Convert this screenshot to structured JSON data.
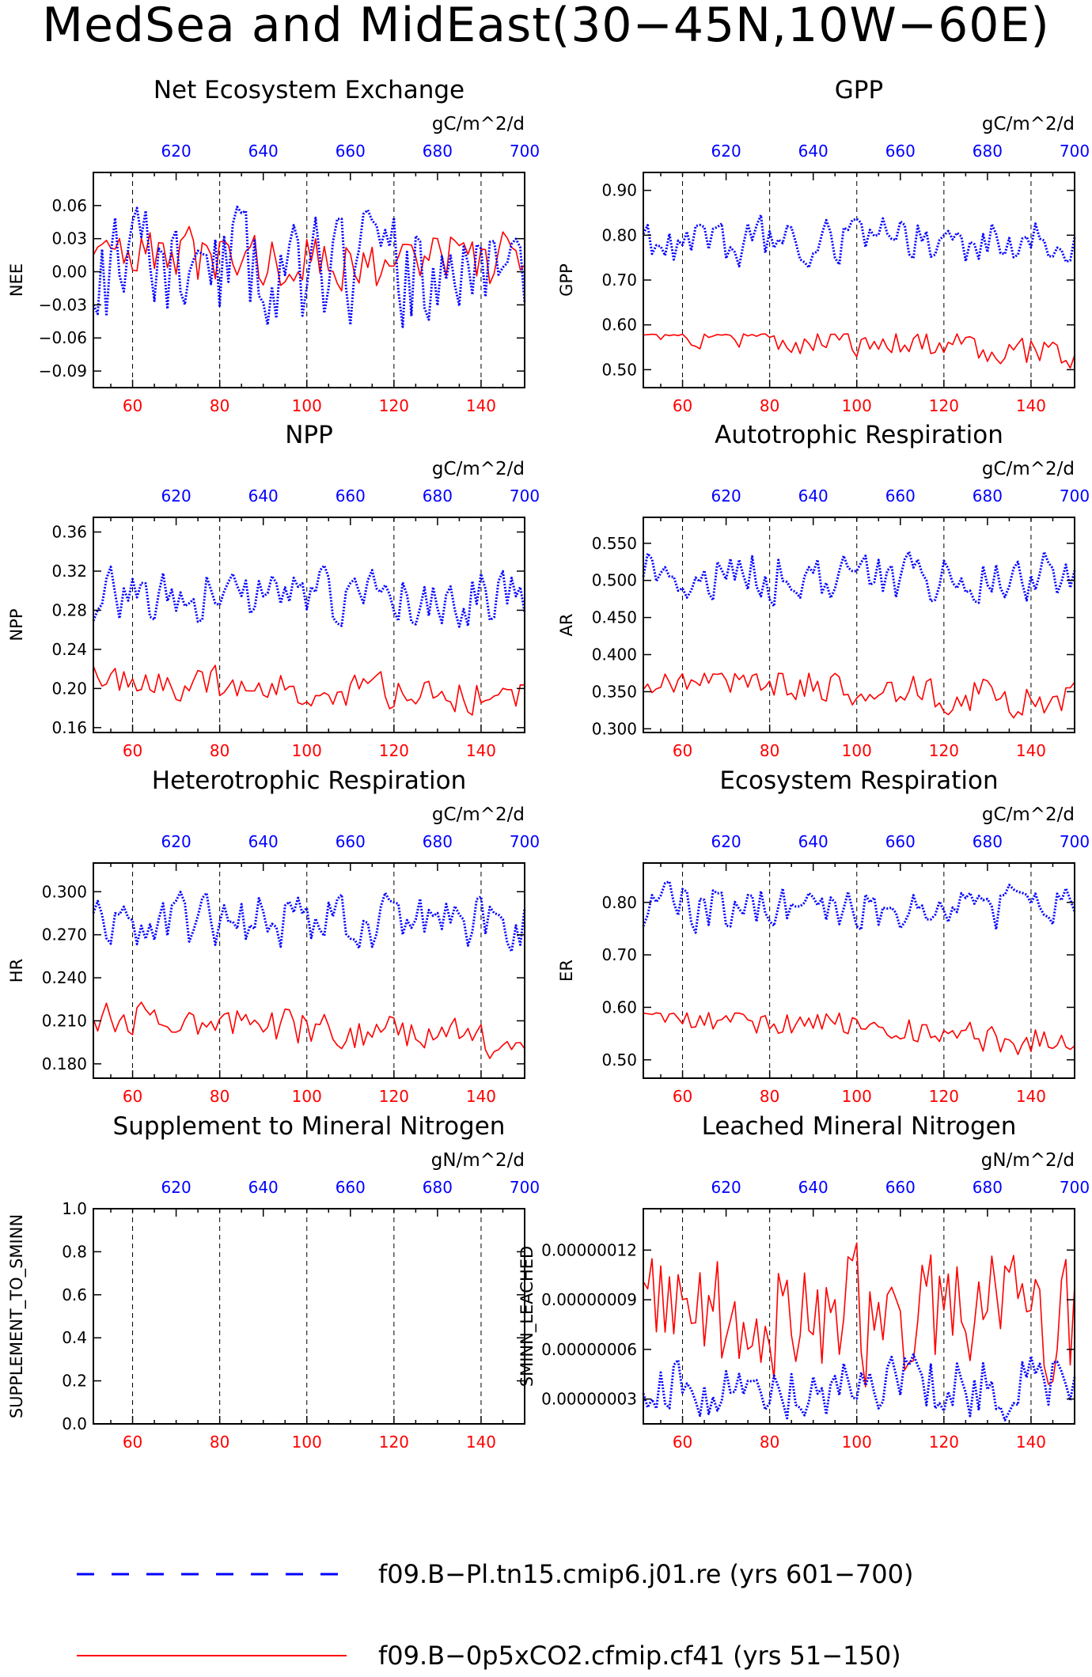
{
  "title": "MedSea and MidEast(30−45N,10W−60E)",
  "colors": {
    "red": "#ff0000",
    "blue": "#0000ff",
    "black": "#000000"
  },
  "legend": [
    {
      "label": "f09.B−Pl.tn15.cmip6.j01.re (yrs 601−700)",
      "color": "#0000ff",
      "style": "dashed"
    },
    {
      "label": "f09.B−0p5xCO2.cfmip.cf41 (yrs 51−150)",
      "color": "#ff0000",
      "style": "solid"
    }
  ],
  "chart_data": [
    {
      "type": "line",
      "title": "Net Ecosystem Exchange",
      "units": "gC/m^2/d",
      "ylabel": "NEE",
      "xlim_bottom": [
        51,
        150
      ],
      "xticks_bottom": [
        60,
        80,
        100,
        120,
        140
      ],
      "xlim_top": [
        601,
        700
      ],
      "xticks_top": [
        620,
        640,
        660,
        680,
        700
      ],
      "ylim": [
        -0.105,
        0.09
      ],
      "yticks": [
        -0.09,
        -0.06,
        -0.03,
        0.0,
        0.03,
        0.06
      ],
      "ytick_labels": [
        "−0.09",
        "−0.06",
        "−0.03",
        "0.00",
        "0.03",
        "0.06"
      ],
      "grid": "dashed vertical at x=60,80,100,120,140",
      "series": [
        {
          "color": "#ff0000",
          "style": "solid",
          "axis": "bottom",
          "base": 0.01,
          "amp": 0.017,
          "trend": 0.0,
          "min": -0.04,
          "max": 0.06,
          "seed": 3
        },
        {
          "color": "#0000ff",
          "style": "dotted",
          "axis": "top",
          "base": 0.0,
          "amp": 0.032,
          "trend": 0.0,
          "min": -0.098,
          "max": 0.075,
          "seed": 11
        }
      ]
    },
    {
      "type": "line",
      "title": "GPP",
      "units": "gC/m^2/d",
      "ylabel": "GPP",
      "xlim_bottom": [
        51,
        150
      ],
      "xticks_bottom": [
        60,
        80,
        100,
        120,
        140
      ],
      "xlim_top": [
        601,
        700
      ],
      "xticks_top": [
        620,
        640,
        660,
        680,
        700
      ],
      "ylim": [
        0.46,
        0.94
      ],
      "yticks": [
        0.5,
        0.6,
        0.7,
        0.8,
        0.9
      ],
      "ytick_labels": [
        "0.50",
        "0.60",
        "0.70",
        "0.80",
        "0.90"
      ],
      "grid": "dashed vertical at x=60,80,100,120,140",
      "series": [
        {
          "color": "#ff0000",
          "style": "solid",
          "axis": "bottom",
          "base": 0.56,
          "amp": 0.022,
          "trend": -0.06,
          "min": 0.47,
          "max": 0.58,
          "seed": 5
        },
        {
          "color": "#0000ff",
          "style": "dotted",
          "axis": "top",
          "base": 0.79,
          "amp": 0.035,
          "trend": 0.0,
          "min": 0.72,
          "max": 0.915,
          "seed": 17
        }
      ]
    },
    {
      "type": "line",
      "title": "NPP",
      "units": "gC/m^2/d",
      "ylabel": "NPP",
      "xlim_bottom": [
        51,
        150
      ],
      "xticks_bottom": [
        60,
        80,
        100,
        120,
        140
      ],
      "xlim_top": [
        601,
        700
      ],
      "xticks_top": [
        620,
        640,
        660,
        680,
        700
      ],
      "ylim": [
        0.155,
        0.375
      ],
      "yticks": [
        0.16,
        0.2,
        0.24,
        0.28,
        0.32,
        0.36
      ],
      "ytick_labels": [
        "0.16",
        "0.20",
        "0.24",
        "0.28",
        "0.32",
        "0.36"
      ],
      "grid": "dashed vertical at x=60,80,100,120,140",
      "series": [
        {
          "color": "#ff0000",
          "style": "solid",
          "axis": "bottom",
          "base": 0.2,
          "amp": 0.011,
          "trend": -0.02,
          "min": 0.165,
          "max": 0.228,
          "seed": 7
        },
        {
          "color": "#0000ff",
          "style": "dotted",
          "axis": "top",
          "base": 0.293,
          "amp": 0.018,
          "trend": 0.0,
          "min": 0.25,
          "max": 0.365,
          "seed": 23
        }
      ]
    },
    {
      "type": "line",
      "title": "Autotrophic Respiration",
      "units": "gC/m^2/d",
      "ylabel": "AR",
      "xlim_bottom": [
        51,
        150
      ],
      "xticks_bottom": [
        60,
        80,
        100,
        120,
        140
      ],
      "xlim_top": [
        601,
        700
      ],
      "xticks_top": [
        620,
        640,
        660,
        680,
        700
      ],
      "ylim": [
        0.295,
        0.585
      ],
      "yticks": [
        0.3,
        0.35,
        0.4,
        0.45,
        0.5,
        0.55
      ],
      "ytick_labels": [
        "0.300",
        "0.350",
        "0.400",
        "0.450",
        "0.500",
        "0.550"
      ],
      "grid": "dashed vertical at x=60,80,100,120,140",
      "series": [
        {
          "color": "#ff0000",
          "style": "solid",
          "axis": "bottom",
          "base": 0.355,
          "amp": 0.016,
          "trend": -0.04,
          "min": 0.3,
          "max": 0.375,
          "seed": 9
        },
        {
          "color": "#0000ff",
          "style": "dotted",
          "axis": "top",
          "base": 0.505,
          "amp": 0.022,
          "trend": 0.0,
          "min": 0.45,
          "max": 0.57,
          "seed": 29
        }
      ]
    },
    {
      "type": "line",
      "title": "Heterotrophic Respiration",
      "units": "gC/m^2/d",
      "ylabel": "HR",
      "xlim_bottom": [
        51,
        150
      ],
      "xticks_bottom": [
        60,
        80,
        100,
        120,
        140
      ],
      "xlim_top": [
        601,
        700
      ],
      "xticks_top": [
        620,
        640,
        660,
        680,
        700
      ],
      "ylim": [
        0.17,
        0.32
      ],
      "yticks": [
        0.18,
        0.21,
        0.24,
        0.27,
        0.3
      ],
      "ytick_labels": [
        "0.180",
        "0.210",
        "0.240",
        "0.270",
        "0.300"
      ],
      "grid": "dashed vertical at x=60,80,100,120,140",
      "series": [
        {
          "color": "#ff0000",
          "style": "solid",
          "axis": "bottom",
          "base": 0.205,
          "amp": 0.008,
          "trend": -0.02,
          "min": 0.172,
          "max": 0.226,
          "seed": 13
        },
        {
          "color": "#0000ff",
          "style": "dotted",
          "axis": "top",
          "base": 0.28,
          "amp": 0.012,
          "trend": 0.0,
          "min": 0.25,
          "max": 0.318,
          "seed": 31
        }
      ]
    },
    {
      "type": "line",
      "title": "Ecosystem Respiration",
      "units": "gC/m^2/d",
      "ylabel": "ER",
      "xlim_bottom": [
        51,
        150
      ],
      "xticks_bottom": [
        60,
        80,
        100,
        120,
        140
      ],
      "xlim_top": [
        601,
        700
      ],
      "xticks_top": [
        620,
        640,
        660,
        680,
        700
      ],
      "ylim": [
        0.465,
        0.875
      ],
      "yticks": [
        0.5,
        0.6,
        0.7,
        0.8
      ],
      "ytick_labels": [
        "0.50",
        "0.60",
        "0.70",
        "0.80"
      ],
      "grid": "dashed vertical at x=60,80,100,120,140",
      "series": [
        {
          "color": "#ff0000",
          "style": "solid",
          "axis": "bottom",
          "base": 0.56,
          "amp": 0.018,
          "trend": -0.06,
          "min": 0.475,
          "max": 0.59,
          "seed": 15
        },
        {
          "color": "#0000ff",
          "style": "dotted",
          "axis": "top",
          "base": 0.79,
          "amp": 0.028,
          "trend": 0.0,
          "min": 0.735,
          "max": 0.855,
          "seed": 37
        }
      ]
    },
    {
      "type": "line",
      "title": "Supplement to Mineral Nitrogen",
      "units": "gN/m^2/d",
      "ylabel": "SUPPLEMENT_TO_SMINN",
      "xlim_bottom": [
        51,
        150
      ],
      "xticks_bottom": [
        60,
        80,
        100,
        120,
        140
      ],
      "xlim_top": [
        601,
        700
      ],
      "xticks_top": [
        620,
        640,
        660,
        680,
        700
      ],
      "ylim": [
        0.0,
        1.0
      ],
      "yticks": [
        0.0,
        0.2,
        0.4,
        0.6,
        0.8,
        1.0
      ],
      "ytick_labels": [
        "0.0",
        "0.2",
        "0.4",
        "0.6",
        "0.8",
        "1.0"
      ],
      "grid": "dashed vertical at x=60,80,100,120,140",
      "series": []
    },
    {
      "type": "line",
      "title": "Leached Mineral Nitrogen",
      "units": "gN/m^2/d",
      "ylabel": "SMINN_LEACHED",
      "xlim_bottom": [
        51,
        150
      ],
      "xticks_bottom": [
        60,
        80,
        100,
        120,
        140
      ],
      "xlim_top": [
        601,
        700
      ],
      "xticks_top": [
        620,
        640,
        660,
        680,
        700
      ],
      "ylim": [
        1.5e-08,
        1.45e-07
      ],
      "yticks": [
        3e-08,
        6e-08,
        9e-08,
        1.2e-07
      ],
      "ytick_labels": [
        "0.00000003",
        "0.00000006",
        "0.00000009",
        "0.00000012"
      ],
      "grid": "dashed vertical at x=60,80,100,120,140",
      "series": [
        {
          "color": "#ff0000",
          "style": "solid",
          "axis": "bottom",
          "base": 8e-08,
          "amp": 2.6e-08,
          "trend": 0.0,
          "min": 2.4e-08,
          "max": 1.45e-07,
          "seed": 19
        },
        {
          "color": "#0000ff",
          "style": "dotted",
          "axis": "top",
          "base": 3.8e-08,
          "amp": 1.2e-08,
          "trend": 0.0,
          "min": 1.6e-08,
          "max": 9e-08,
          "seed": 41
        }
      ]
    }
  ]
}
